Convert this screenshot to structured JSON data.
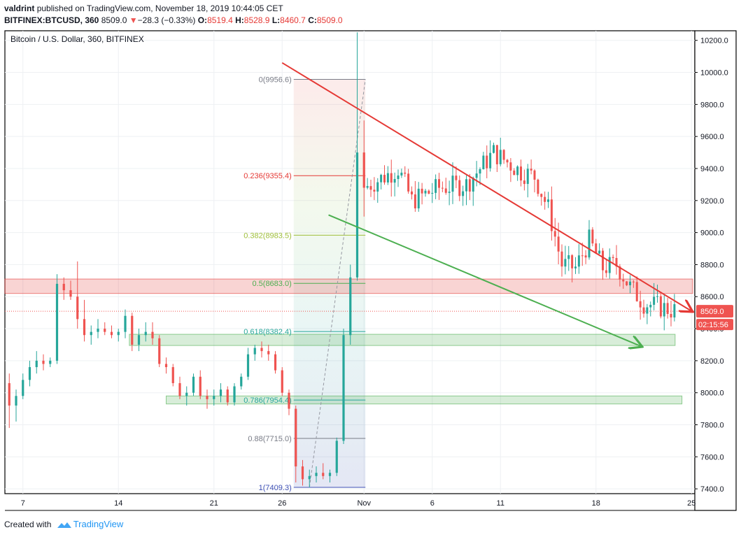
{
  "header": {
    "author": "valdrint",
    "published": "published on TradingView.com, November 18, 2019 10:44:05 CET",
    "symbol": "BITFINEX:BTCUSD, 360",
    "price": "8509.0",
    "change": "−28.3 (−0.33%)",
    "open_label": "O:",
    "open": "8519.4",
    "high_label": "H:",
    "high": "8528.9",
    "low_label": "L:",
    "low": "8460.7",
    "close_label": "C:",
    "close": "8509.0"
  },
  "footer": {
    "created_with": "Created with",
    "brand": "TradingView"
  },
  "chart_data": {
    "type": "candlestick",
    "title": "Bitcoin / U.S. Dollar, 360, BITFINEX",
    "ylim": [
      7370,
      10260
    ],
    "y_ticks": [
      7400,
      7600,
      7800,
      8000,
      8200,
      8400,
      8600,
      8800,
      9000,
      9200,
      9400,
      9600,
      9800,
      10000,
      10200
    ],
    "x_tick_labels": [
      {
        "label": "7",
        "t": 0.5
      },
      {
        "label": "14",
        "t": 7.5
      },
      {
        "label": "21",
        "t": 14.5
      },
      {
        "label": "26",
        "t": 19.5
      },
      {
        "label": "Nov",
        "t": 25.5
      },
      {
        "label": "6",
        "t": 30.5
      },
      {
        "label": "11",
        "t": 35.5
      },
      {
        "label": "18",
        "t": 42.5
      },
      {
        "label": "25",
        "t": 49.5
      }
    ],
    "last_price": {
      "value": 8509.0,
      "label": "8509.0",
      "countdown": "02:15:56"
    },
    "fib_levels": [
      {
        "ratio_label": "0",
        "price": 9956.6,
        "label": "0(9956.6)",
        "color": "#787b86"
      },
      {
        "ratio_label": "0.236",
        "price": 9355.4,
        "label": "0.236(9355.4)",
        "color": "#e53935"
      },
      {
        "ratio_label": "0.382",
        "price": 8983.5,
        "label": "0.382(8983.5)",
        "color": "#9fbf3a"
      },
      {
        "ratio_label": "0.5",
        "price": 8683.0,
        "label": "0.5(8683.0)",
        "color": "#4caf50"
      },
      {
        "ratio_label": "0.618",
        "price": 8382.4,
        "label": "0.618(8382.4)",
        "color": "#26a69a"
      },
      {
        "ratio_label": "0.786",
        "price": 7954.4,
        "label": "0.786(7954.4)",
        "color": "#26a69a"
      },
      {
        "ratio_label": "0.88",
        "price": 7715.0,
        "label": "0.88(7715.0)",
        "color": "#787b86"
      },
      {
        "ratio_label": "1",
        "price": 7409.3,
        "label": "1(7409.3)",
        "color": "#3f51b5"
      }
    ],
    "zones": [
      {
        "name": "resistance",
        "price_from": 8620,
        "price_to": 8710,
        "color": "#e53935"
      },
      {
        "name": "support-1",
        "price_from": 8295,
        "price_to": 8365,
        "color": "#4caf50"
      },
      {
        "name": "support-2",
        "price_from": 7930,
        "price_to": 7980,
        "color": "#4caf50"
      }
    ],
    "trendlines": [
      {
        "name": "descending-resistance",
        "from": {
          "t": 19.5,
          "price": 10060
        },
        "to": {
          "t": 49.5,
          "price": 8510
        },
        "color": "#e53935"
      },
      {
        "name": "descending-support",
        "from": {
          "t": 22.9,
          "price": 9110
        },
        "to": {
          "t": 45.8,
          "price": 8290
        },
        "color": "#4caf50"
      }
    ],
    "candles": [
      {
        "t": -0.5,
        "o": 8060,
        "h": 8120,
        "l": 7780,
        "c": 7920
      },
      {
        "t": 0,
        "o": 7920,
        "h": 8020,
        "l": 7820,
        "c": 7980
      },
      {
        "t": 0.5,
        "o": 7980,
        "h": 8120,
        "l": 7960,
        "c": 8080
      },
      {
        "t": 1,
        "o": 8080,
        "h": 8200,
        "l": 8040,
        "c": 8160
      },
      {
        "t": 1.5,
        "o": 8160,
        "h": 8260,
        "l": 8120,
        "c": 8200
      },
      {
        "t": 2,
        "o": 8200,
        "h": 8240,
        "l": 8140,
        "c": 8180
      },
      {
        "t": 2.5,
        "o": 8180,
        "h": 8220,
        "l": 8160,
        "c": 8200
      },
      {
        "t": 3,
        "o": 8200,
        "h": 8740,
        "l": 8180,
        "c": 8680
      },
      {
        "t": 3.5,
        "o": 8680,
        "h": 8720,
        "l": 8580,
        "c": 8640
      },
      {
        "t": 4,
        "o": 8640,
        "h": 8700,
        "l": 8580,
        "c": 8600
      },
      {
        "t": 4.5,
        "o": 8600,
        "h": 8820,
        "l": 8400,
        "c": 8460
      },
      {
        "t": 5,
        "o": 8460,
        "h": 8580,
        "l": 8320,
        "c": 8360
      },
      {
        "t": 5.5,
        "o": 8360,
        "h": 8420,
        "l": 8300,
        "c": 8380
      },
      {
        "t": 6,
        "o": 8380,
        "h": 8460,
        "l": 8340,
        "c": 8400
      },
      {
        "t": 6.5,
        "o": 8400,
        "h": 8440,
        "l": 8360,
        "c": 8380
      },
      {
        "t": 7,
        "o": 8380,
        "h": 8420,
        "l": 8340,
        "c": 8360
      },
      {
        "t": 7.5,
        "o": 8360,
        "h": 8400,
        "l": 8320,
        "c": 8380
      },
      {
        "t": 8,
        "o": 8380,
        "h": 8520,
        "l": 8340,
        "c": 8480
      },
      {
        "t": 8.5,
        "o": 8480,
        "h": 8500,
        "l": 8260,
        "c": 8300
      },
      {
        "t": 9,
        "o": 8300,
        "h": 8400,
        "l": 8260,
        "c": 8360
      },
      {
        "t": 9.5,
        "o": 8360,
        "h": 8440,
        "l": 8320,
        "c": 8380
      },
      {
        "t": 10,
        "o": 8380,
        "h": 8440,
        "l": 8300,
        "c": 8340
      },
      {
        "t": 10.5,
        "o": 8340,
        "h": 8360,
        "l": 8160,
        "c": 8180
      },
      {
        "t": 11,
        "o": 8180,
        "h": 8220,
        "l": 8120,
        "c": 8160
      },
      {
        "t": 11.5,
        "o": 8160,
        "h": 8180,
        "l": 8040,
        "c": 8060
      },
      {
        "t": 12,
        "o": 8060,
        "h": 8100,
        "l": 7960,
        "c": 7980
      },
      {
        "t": 12.5,
        "o": 7980,
        "h": 8040,
        "l": 7920,
        "c": 8000
      },
      {
        "t": 13,
        "o": 8000,
        "h": 8120,
        "l": 7980,
        "c": 8100
      },
      {
        "t": 13.5,
        "o": 8100,
        "h": 8140,
        "l": 7960,
        "c": 7980
      },
      {
        "t": 14,
        "o": 7980,
        "h": 8020,
        "l": 7900,
        "c": 7960
      },
      {
        "t": 14.5,
        "o": 7960,
        "h": 8020,
        "l": 7920,
        "c": 7980
      },
      {
        "t": 15,
        "o": 7980,
        "h": 8060,
        "l": 7940,
        "c": 8020
      },
      {
        "t": 15.5,
        "o": 8020,
        "h": 8040,
        "l": 7920,
        "c": 7940
      },
      {
        "t": 16,
        "o": 7940,
        "h": 8060,
        "l": 7920,
        "c": 8040
      },
      {
        "t": 16.5,
        "o": 8040,
        "h": 8120,
        "l": 8020,
        "c": 8100
      },
      {
        "t": 17,
        "o": 8100,
        "h": 8280,
        "l": 8080,
        "c": 8240
      },
      {
        "t": 17.5,
        "o": 8240,
        "h": 8300,
        "l": 8200,
        "c": 8280
      },
      {
        "t": 18,
        "o": 8280,
        "h": 8320,
        "l": 8220,
        "c": 8260
      },
      {
        "t": 18.5,
        "o": 8260,
        "h": 8300,
        "l": 8200,
        "c": 8240
      },
      {
        "t": 19,
        "o": 8240,
        "h": 8260,
        "l": 8120,
        "c": 8140
      },
      {
        "t": 19.5,
        "o": 8140,
        "h": 8160,
        "l": 7980,
        "c": 8000
      },
      {
        "t": 20,
        "o": 8000,
        "h": 8020,
        "l": 7860,
        "c": 7900
      },
      {
        "t": 20.5,
        "o": 7900,
        "h": 7920,
        "l": 7440,
        "c": 7540
      },
      {
        "t": 21,
        "o": 7540,
        "h": 7580,
        "l": 7420,
        "c": 7460
      },
      {
        "t": 21.5,
        "o": 7460,
        "h": 7520,
        "l": 7409,
        "c": 7480
      },
      {
        "t": 22,
        "o": 7480,
        "h": 7540,
        "l": 7440,
        "c": 7500
      },
      {
        "t": 22.5,
        "o": 7500,
        "h": 7560,
        "l": 7460,
        "c": 7480
      },
      {
        "t": 23,
        "o": 7480,
        "h": 7520,
        "l": 7440,
        "c": 7500
      },
      {
        "t": 23.5,
        "o": 7500,
        "h": 7720,
        "l": 7480,
        "c": 7700
      },
      {
        "t": 24,
        "o": 7700,
        "h": 8400,
        "l": 7680,
        "c": 8360
      },
      {
        "t": 24.5,
        "o": 8360,
        "h": 8800,
        "l": 8300,
        "c": 8720
      },
      {
        "t": 25,
        "o": 8720,
        "h": 10250,
        "l": 8700,
        "c": 9500
      },
      {
        "t": 25.5,
        "o": 9500,
        "h": 9700,
        "l": 9100,
        "c": 9280
      }
    ]
  }
}
